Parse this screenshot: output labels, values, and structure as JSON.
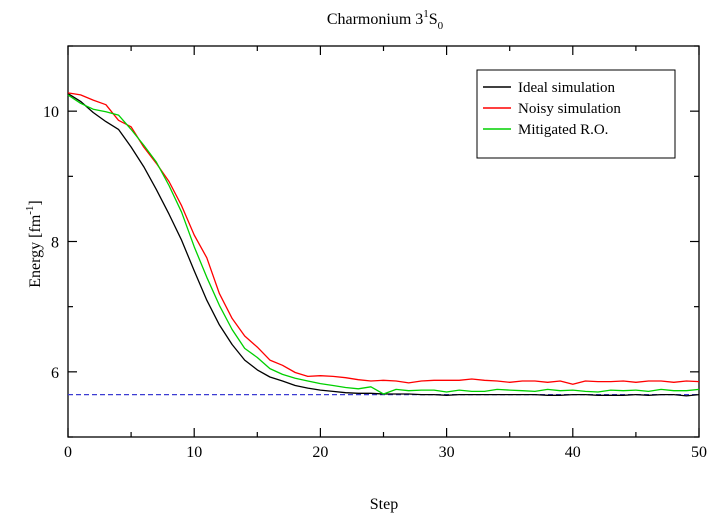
{
  "chart_data": {
    "type": "line",
    "title_main": "Charmonium 3",
    "title_sup": "1",
    "title_s": "S",
    "title_sub": "0",
    "xlabel": "Step",
    "ylabel_main": "Energy [fm",
    "ylabel_sup": "-1",
    "ylabel_end": "]",
    "xlim": [
      0,
      50
    ],
    "ylim": [
      5,
      11
    ],
    "xticks": [
      0,
      10,
      20,
      30,
      40,
      50
    ],
    "yticks": [
      6,
      8,
      10
    ],
    "grid": false,
    "legend_position": "top-right",
    "reference_line": {
      "y": 5.65,
      "color": "#3c3cd2",
      "style": "dashed"
    },
    "series": [
      {
        "name": "Ideal simulation",
        "color": "#000000",
        "x": [
          0,
          1,
          2,
          3,
          4,
          5,
          6,
          7,
          8,
          9,
          10,
          11,
          12,
          13,
          14,
          15,
          16,
          17,
          18,
          19,
          20,
          21,
          22,
          23,
          24,
          25,
          26,
          27,
          28,
          29,
          30,
          31,
          32,
          33,
          34,
          35,
          36,
          37,
          38,
          39,
          40,
          41,
          42,
          43,
          44,
          45,
          46,
          47,
          48,
          49,
          50
        ],
        "values": [
          10.27,
          10.15,
          9.98,
          9.84,
          9.72,
          9.45,
          9.15,
          8.8,
          8.42,
          8.02,
          7.55,
          7.1,
          6.72,
          6.42,
          6.18,
          6.03,
          5.92,
          5.86,
          5.79,
          5.75,
          5.72,
          5.7,
          5.68,
          5.67,
          5.67,
          5.66,
          5.66,
          5.66,
          5.65,
          5.65,
          5.64,
          5.65,
          5.65,
          5.65,
          5.65,
          5.65,
          5.65,
          5.65,
          5.64,
          5.64,
          5.65,
          5.65,
          5.64,
          5.64,
          5.64,
          5.65,
          5.64,
          5.65,
          5.65,
          5.63,
          5.65
        ]
      },
      {
        "name": "Noisy simulation",
        "color": "#ff0000",
        "x": [
          0,
          1,
          2,
          3,
          4,
          5,
          6,
          7,
          8,
          9,
          10,
          11,
          12,
          13,
          14,
          15,
          16,
          17,
          18,
          19,
          20,
          21,
          22,
          23,
          24,
          25,
          26,
          27,
          28,
          29,
          30,
          31,
          32,
          33,
          34,
          35,
          36,
          37,
          38,
          39,
          40,
          41,
          42,
          43,
          44,
          45,
          46,
          47,
          48,
          49,
          50
        ],
        "values": [
          10.28,
          10.25,
          10.17,
          10.1,
          9.86,
          9.76,
          9.45,
          9.2,
          8.92,
          8.55,
          8.1,
          7.75,
          7.2,
          6.82,
          6.55,
          6.38,
          6.18,
          6.1,
          5.99,
          5.93,
          5.94,
          5.93,
          5.91,
          5.88,
          5.86,
          5.87,
          5.86,
          5.83,
          5.86,
          5.87,
          5.87,
          5.87,
          5.89,
          5.87,
          5.86,
          5.84,
          5.86,
          5.86,
          5.84,
          5.86,
          5.81,
          5.86,
          5.85,
          5.85,
          5.86,
          5.84,
          5.86,
          5.86,
          5.84,
          5.86,
          5.85
        ]
      },
      {
        "name": "Mitigated R.O.",
        "color": "#00d000",
        "x": [
          0,
          1,
          2,
          3,
          4,
          5,
          6,
          7,
          8,
          9,
          10,
          11,
          12,
          13,
          14,
          15,
          16,
          17,
          18,
          19,
          20,
          21,
          22,
          23,
          24,
          25,
          26,
          27,
          28,
          29,
          30,
          31,
          32,
          33,
          34,
          35,
          36,
          37,
          38,
          39,
          40,
          41,
          42,
          43,
          44,
          45,
          46,
          47,
          48,
          49,
          50
        ],
        "values": [
          10.25,
          10.12,
          10.03,
          9.99,
          9.94,
          9.72,
          9.48,
          9.22,
          8.86,
          8.45,
          7.92,
          7.45,
          7.02,
          6.65,
          6.36,
          6.22,
          6.05,
          5.96,
          5.9,
          5.86,
          5.82,
          5.79,
          5.76,
          5.74,
          5.77,
          5.66,
          5.73,
          5.71,
          5.72,
          5.72,
          5.69,
          5.72,
          5.7,
          5.7,
          5.73,
          5.72,
          5.71,
          5.7,
          5.73,
          5.71,
          5.72,
          5.7,
          5.69,
          5.72,
          5.71,
          5.72,
          5.7,
          5.73,
          5.71,
          5.71,
          5.73
        ]
      }
    ]
  }
}
